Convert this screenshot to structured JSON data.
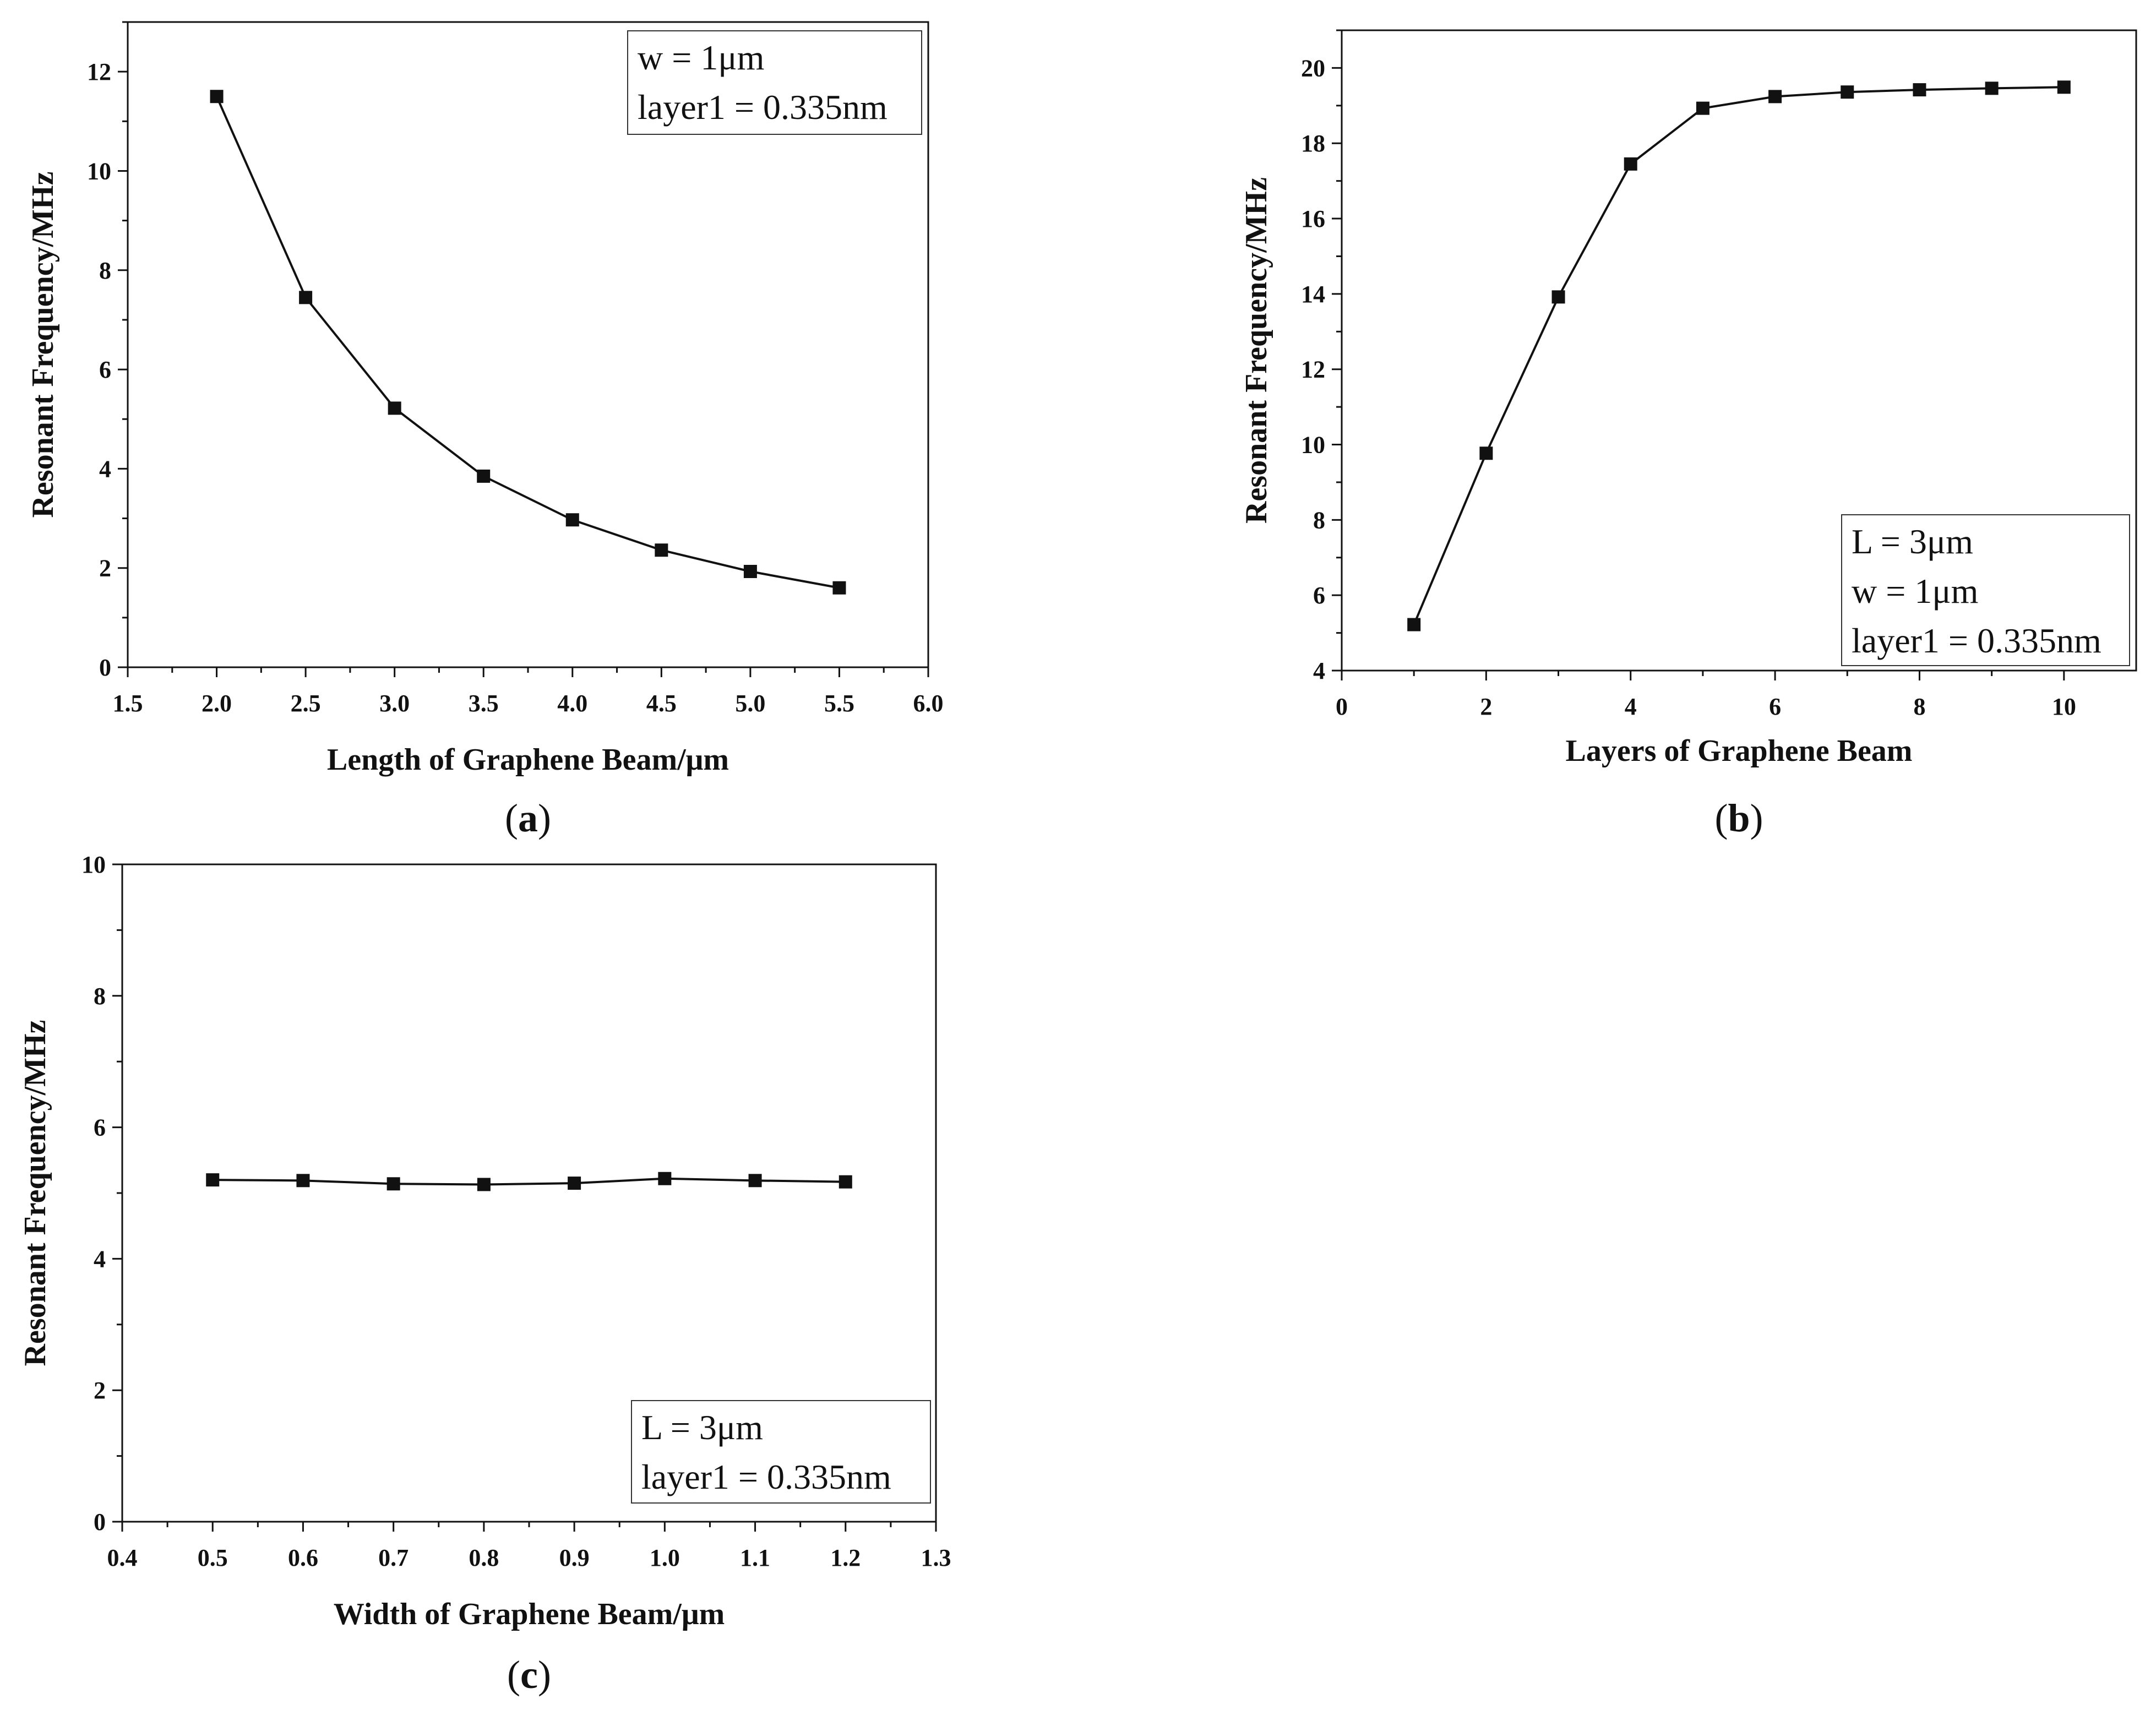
{
  "chart_data": [
    {
      "type": "line",
      "panel": "(a)",
      "caption_letter": "a",
      "title": "",
      "xlabel": "Length of Graphene Beam/μm",
      "ylabel": "Resonant Frequency/MHz",
      "xlim": [
        1.5,
        6.0
      ],
      "ylim": [
        0,
        13
      ],
      "xticks": [
        1.5,
        2.0,
        2.5,
        3.0,
        3.5,
        4.0,
        4.5,
        5.0,
        5.5,
        6.0
      ],
      "xtick_labels": [
        "1.5",
        "2.0",
        "2.5",
        "3.0",
        "3.5",
        "4.0",
        "4.5",
        "5.0",
        "5.5",
        "6.0"
      ],
      "yticks": [
        0,
        2,
        4,
        6,
        8,
        10,
        12
      ],
      "ytick_labels": [
        "0",
        "2",
        "4",
        "6",
        "8",
        "10",
        "12"
      ],
      "legend_lines": [
        "w = 1μm",
        "layer1 = 0.335nm"
      ],
      "legend_position": "top-right",
      "grid": false,
      "series": [
        {
          "name": "Resonant frequency",
          "x": [
            2.0,
            2.5,
            3.0,
            3.5,
            4.0,
            4.5,
            5.0,
            5.5
          ],
          "values": [
            11.5,
            7.45,
            5.22,
            3.85,
            2.97,
            2.36,
            1.93,
            1.6
          ]
        }
      ]
    },
    {
      "type": "line",
      "panel": "(b)",
      "caption_letter": "b",
      "title": "",
      "xlabel": "Layers of Graphene Beam",
      "ylabel": "Resonant Frequency/MHz",
      "xlim": [
        0,
        11
      ],
      "ylim": [
        4,
        21
      ],
      "xticks": [
        0,
        2,
        4,
        6,
        8,
        10
      ],
      "xtick_labels": [
        "0",
        "2",
        "4",
        "6",
        "8",
        "10"
      ],
      "yticks": [
        4,
        6,
        8,
        10,
        12,
        14,
        16,
        18,
        20
      ],
      "ytick_labels": [
        "4",
        "6",
        "8",
        "10",
        "12",
        "14",
        "16",
        "18",
        "20"
      ],
      "legend_lines": [
        "L = 3μm",
        "w = 1μm",
        "layer1 = 0.335nm"
      ],
      "legend_position": "bottom-right",
      "grid": false,
      "series": [
        {
          "name": "Resonant frequency",
          "x": [
            1,
            2,
            3,
            4,
            5,
            6,
            7,
            8,
            9,
            10
          ],
          "values": [
            5.22,
            9.77,
            13.92,
            17.45,
            18.93,
            19.24,
            19.36,
            19.42,
            19.46,
            19.49
          ]
        }
      ]
    },
    {
      "type": "line",
      "panel": "(c)",
      "caption_letter": "c",
      "title": "",
      "xlabel": "Width of Graphene Beam/μm",
      "ylabel": "Resonant Frequency/MHz",
      "xlim": [
        0.4,
        1.3
      ],
      "ylim": [
        0,
        10
      ],
      "xticks": [
        0.4,
        0.5,
        0.6,
        0.7,
        0.8,
        0.9,
        1.0,
        1.1,
        1.2,
        1.3
      ],
      "xtick_labels": [
        "0.4",
        "0.5",
        "0.6",
        "0.7",
        "0.8",
        "0.9",
        "1.0",
        "1.1",
        "1.2",
        "1.3"
      ],
      "yticks": [
        0,
        2,
        4,
        6,
        8,
        10
      ],
      "ytick_labels": [
        "0",
        "2",
        "4",
        "6",
        "8",
        "10"
      ],
      "legend_lines": [
        "L = 3μm",
        "layer1 = 0.335nm"
      ],
      "legend_position": "bottom-right",
      "grid": false,
      "series": [
        {
          "name": "Resonant frequency",
          "x": [
            0.5,
            0.6,
            0.7,
            0.8,
            0.9,
            1.0,
            1.1,
            1.2
          ],
          "values": [
            5.2,
            5.19,
            5.14,
            5.13,
            5.15,
            5.22,
            5.19,
            5.17
          ]
        }
      ]
    }
  ]
}
